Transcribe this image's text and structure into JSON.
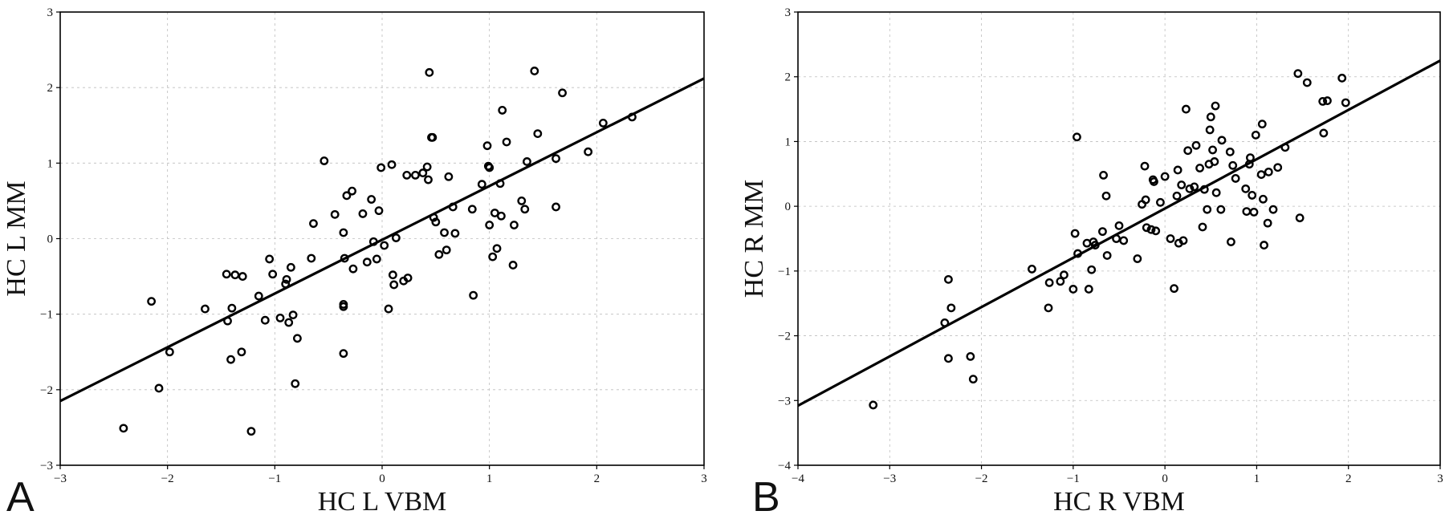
{
  "chart_data": [
    {
      "type": "scatter",
      "panel_label": "A",
      "xlabel": "HC L VBM",
      "ylabel": "HC L MM",
      "xlim": [
        -3,
        3
      ],
      "ylim": [
        -3,
        3
      ],
      "xticks": [
        -3,
        -2,
        -1,
        0,
        1,
        2,
        3
      ],
      "yticks": [
        -3,
        -2,
        -1,
        0,
        1,
        2,
        3
      ],
      "grid": true,
      "fit_line": {
        "x": [
          -3,
          3
        ],
        "y": [
          -2.15,
          2.12
        ]
      },
      "points": [
        [
          -2.41,
          -2.51
        ],
        [
          -2.08,
          -1.98
        ],
        [
          -1.98,
          -1.5
        ],
        [
          -2.15,
          -0.83
        ],
        [
          -1.65,
          -0.93
        ],
        [
          -1.44,
          -1.09
        ],
        [
          -1.41,
          -1.6
        ],
        [
          -1.31,
          -1.5
        ],
        [
          -1.4,
          -0.92
        ],
        [
          -1.45,
          -0.47
        ],
        [
          -1.37,
          -0.48
        ],
        [
          -1.3,
          -0.5
        ],
        [
          -1.22,
          -2.55
        ],
        [
          -1.15,
          -0.76
        ],
        [
          -1.09,
          -1.08
        ],
        [
          -1.05,
          -0.27
        ],
        [
          -1.02,
          -0.47
        ],
        [
          -0.95,
          -1.05
        ],
        [
          -0.9,
          -0.6
        ],
        [
          -0.89,
          -0.54
        ],
        [
          -0.87,
          -1.11
        ],
        [
          -0.85,
          -0.38
        ],
        [
          -0.83,
          -1.01
        ],
        [
          -0.81,
          -1.92
        ],
        [
          -0.79,
          -1.32
        ],
        [
          -0.66,
          -0.26
        ],
        [
          -0.64,
          0.2
        ],
        [
          -0.54,
          1.03
        ],
        [
          -0.44,
          0.32
        ],
        [
          -0.36,
          -1.52
        ],
        [
          -0.36,
          -0.9
        ],
        [
          -0.36,
          -0.87
        ],
        [
          -0.36,
          0.08
        ],
        [
          -0.35,
          -0.26
        ],
        [
          -0.33,
          0.57
        ],
        [
          -0.28,
          0.63
        ],
        [
          -0.27,
          -0.4
        ],
        [
          -0.18,
          0.33
        ],
        [
          -0.14,
          -0.31
        ],
        [
          -0.1,
          0.52
        ],
        [
          -0.08,
          -0.04
        ],
        [
          -0.05,
          -0.27
        ],
        [
          -0.03,
          0.37
        ],
        [
          -0.01,
          0.94
        ],
        [
          0.02,
          -0.09
        ],
        [
          0.06,
          -0.93
        ],
        [
          0.09,
          0.98
        ],
        [
          0.1,
          -0.48
        ],
        [
          0.11,
          -0.61
        ],
        [
          0.13,
          0.01
        ],
        [
          0.2,
          -0.56
        ],
        [
          0.24,
          -0.52
        ],
        [
          0.23,
          0.84
        ],
        [
          0.31,
          0.84
        ],
        [
          0.38,
          0.87
        ],
        [
          0.42,
          0.95
        ],
        [
          0.43,
          0.78
        ],
        [
          0.44,
          2.2
        ],
        [
          0.46,
          1.34
        ],
        [
          0.47,
          1.34
        ],
        [
          0.48,
          0.28
        ],
        [
          0.5,
          0.22
        ],
        [
          0.53,
          -0.21
        ],
        [
          0.58,
          0.08
        ],
        [
          0.6,
          -0.15
        ],
        [
          0.62,
          0.82
        ],
        [
          0.66,
          0.42
        ],
        [
          0.68,
          0.07
        ],
        [
          0.84,
          0.39
        ],
        [
          0.85,
          -0.75
        ],
        [
          0.93,
          0.72
        ],
        [
          0.98,
          1.23
        ],
        [
          0.99,
          0.96
        ],
        [
          1.0,
          0.94
        ],
        [
          1.0,
          0.18
        ],
        [
          1.03,
          -0.24
        ],
        [
          1.05,
          0.34
        ],
        [
          1.07,
          -0.13
        ],
        [
          1.1,
          0.73
        ],
        [
          1.11,
          0.3
        ],
        [
          1.12,
          1.7
        ],
        [
          1.16,
          1.28
        ],
        [
          1.22,
          -0.35
        ],
        [
          1.23,
          0.18
        ],
        [
          1.3,
          0.5
        ],
        [
          1.33,
          0.39
        ],
        [
          1.35,
          1.02
        ],
        [
          1.42,
          2.22
        ],
        [
          1.45,
          1.39
        ],
        [
          1.62,
          1.06
        ],
        [
          1.62,
          0.42
        ],
        [
          1.68,
          1.93
        ],
        [
          1.92,
          1.15
        ],
        [
          2.06,
          1.53
        ],
        [
          2.33,
          1.61
        ]
      ]
    },
    {
      "type": "scatter",
      "panel_label": "B",
      "xlabel": "HC R VBM",
      "ylabel": "HC R MM",
      "xlim": [
        -4,
        3
      ],
      "ylim": [
        -4,
        3
      ],
      "xticks": [
        -4,
        -3,
        -2,
        -1,
        0,
        1,
        2,
        3
      ],
      "yticks": [
        -4,
        -3,
        -2,
        -1,
        0,
        1,
        2,
        3
      ],
      "grid": true,
      "fit_line": {
        "x": [
          -4,
          3
        ],
        "y": [
          -3.08,
          2.25
        ]
      },
      "points": [
        [
          -3.18,
          -3.07
        ],
        [
          -2.4,
          -1.8
        ],
        [
          -2.36,
          -1.13
        ],
        [
          -2.36,
          -2.35
        ],
        [
          -2.33,
          -1.57
        ],
        [
          -2.12,
          -2.32
        ],
        [
          -2.09,
          -2.67
        ],
        [
          -1.45,
          -0.97
        ],
        [
          -1.27,
          -1.57
        ],
        [
          -1.26,
          -1.18
        ],
        [
          -1.14,
          -1.16
        ],
        [
          -1.1,
          -1.06
        ],
        [
          -1.0,
          -1.28
        ],
        [
          -0.98,
          -0.42
        ],
        [
          -0.96,
          1.07
        ],
        [
          -0.95,
          -0.73
        ],
        [
          -0.85,
          -0.57
        ],
        [
          -0.83,
          -1.28
        ],
        [
          -0.8,
          -0.98
        ],
        [
          -0.78,
          -0.55
        ],
        [
          -0.76,
          -0.6
        ],
        [
          -0.68,
          -0.39
        ],
        [
          -0.67,
          0.48
        ],
        [
          -0.64,
          0.16
        ],
        [
          -0.63,
          -0.76
        ],
        [
          -0.53,
          -0.5
        ],
        [
          -0.5,
          -0.3
        ],
        [
          -0.45,
          -0.53
        ],
        [
          -0.3,
          -0.81
        ],
        [
          -0.25,
          0.03
        ],
        [
          -0.22,
          0.62
        ],
        [
          -0.21,
          0.1
        ],
        [
          -0.2,
          -0.33
        ],
        [
          -0.15,
          -0.36
        ],
        [
          -0.13,
          0.41
        ],
        [
          -0.12,
          0.38
        ],
        [
          -0.1,
          -0.38
        ],
        [
          -0.05,
          0.06
        ],
        [
          0.0,
          0.46
        ],
        [
          0.06,
          -0.5
        ],
        [
          0.1,
          -1.27
        ],
        [
          0.13,
          0.16
        ],
        [
          0.14,
          0.56
        ],
        [
          0.15,
          -0.57
        ],
        [
          0.18,
          0.33
        ],
        [
          0.2,
          -0.53
        ],
        [
          0.23,
          1.5
        ],
        [
          0.25,
          0.86
        ],
        [
          0.27,
          0.27
        ],
        [
          0.32,
          0.3
        ],
        [
          0.34,
          0.94
        ],
        [
          0.38,
          0.59
        ],
        [
          0.41,
          -0.32
        ],
        [
          0.43,
          0.26
        ],
        [
          0.46,
          -0.05
        ],
        [
          0.48,
          0.65
        ],
        [
          0.49,
          1.18
        ],
        [
          0.5,
          1.38
        ],
        [
          0.52,
          0.87
        ],
        [
          0.54,
          0.69
        ],
        [
          0.55,
          1.55
        ],
        [
          0.56,
          0.21
        ],
        [
          0.61,
          -0.05
        ],
        [
          0.62,
          1.02
        ],
        [
          0.71,
          0.84
        ],
        [
          0.72,
          -0.55
        ],
        [
          0.74,
          0.63
        ],
        [
          0.77,
          0.43
        ],
        [
          0.88,
          0.27
        ],
        [
          0.89,
          -0.08
        ],
        [
          0.92,
          0.65
        ],
        [
          0.93,
          0.75
        ],
        [
          0.95,
          0.17
        ],
        [
          0.97,
          -0.09
        ],
        [
          0.99,
          1.1
        ],
        [
          1.05,
          0.49
        ],
        [
          1.06,
          1.27
        ],
        [
          1.07,
          0.11
        ],
        [
          1.08,
          -0.6
        ],
        [
          1.12,
          -0.26
        ],
        [
          1.13,
          0.53
        ],
        [
          1.18,
          -0.05
        ],
        [
          1.23,
          0.6
        ],
        [
          1.31,
          0.91
        ],
        [
          1.45,
          2.05
        ],
        [
          1.47,
          -0.18
        ],
        [
          1.55,
          1.91
        ],
        [
          1.72,
          1.62
        ],
        [
          1.73,
          1.13
        ],
        [
          1.77,
          1.63
        ],
        [
          1.93,
          1.98
        ],
        [
          1.97,
          1.6
        ]
      ]
    }
  ]
}
